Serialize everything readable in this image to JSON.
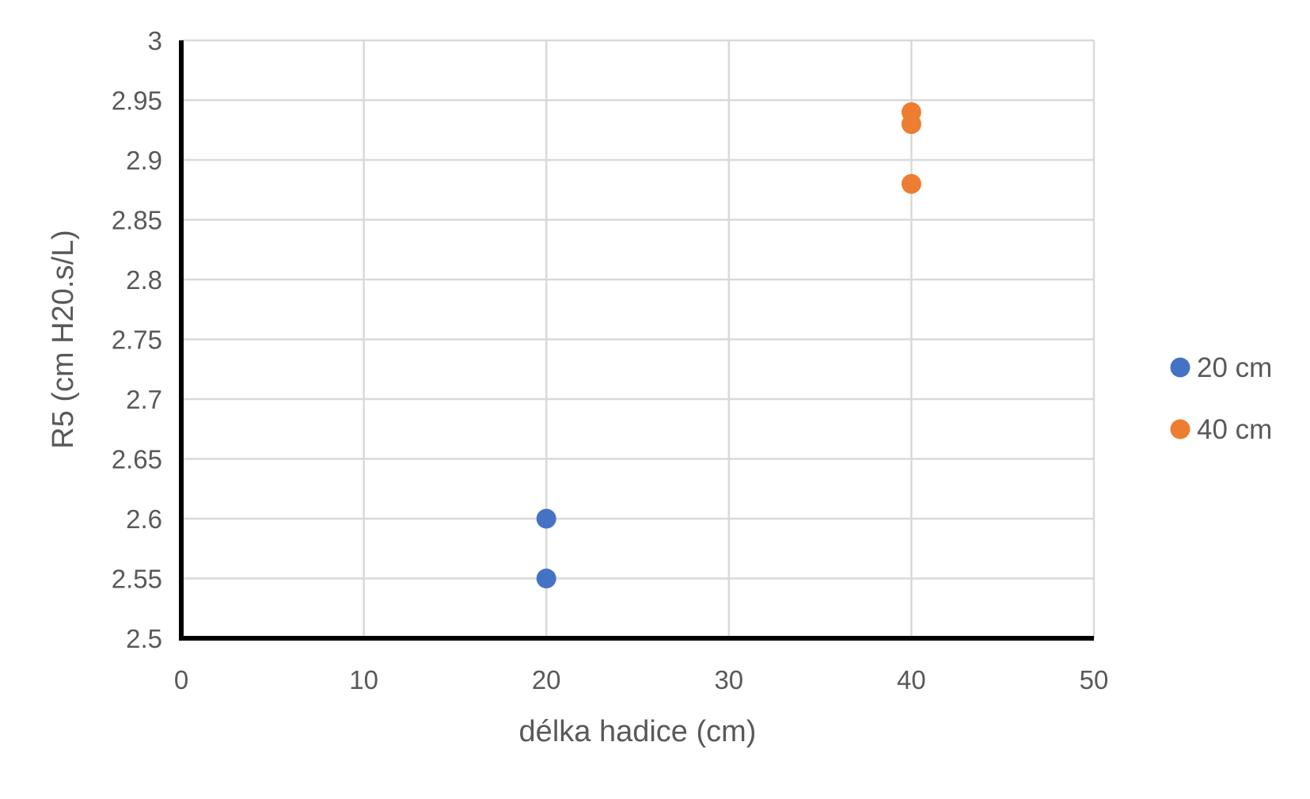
{
  "chart_data": {
    "type": "scatter",
    "xlabel": "délka hadice (cm)",
    "ylabel": "R5 (cm H20.s/L)",
    "xlim": [
      0,
      50
    ],
    "ylim": [
      2.5,
      3
    ],
    "x_ticks": [
      "0",
      "10",
      "20",
      "30",
      "40",
      "50"
    ],
    "y_ticks": [
      "2.5",
      "2.55",
      "2.6",
      "2.65",
      "2.7",
      "2.75",
      "2.8",
      "2.85",
      "2.9",
      "2.95",
      "3"
    ],
    "grid": true,
    "legend_position": "right",
    "series": [
      {
        "name": "20 cm",
        "color": "#4472C4",
        "points": [
          {
            "x": 20,
            "y": 2.6
          },
          {
            "x": 20,
            "y": 2.55
          }
        ]
      },
      {
        "name": "40 cm",
        "color": "#ED7D31",
        "points": [
          {
            "x": 40,
            "y": 2.94
          },
          {
            "x": 40,
            "y": 2.93
          },
          {
            "x": 40,
            "y": 2.88
          }
        ]
      }
    ]
  }
}
